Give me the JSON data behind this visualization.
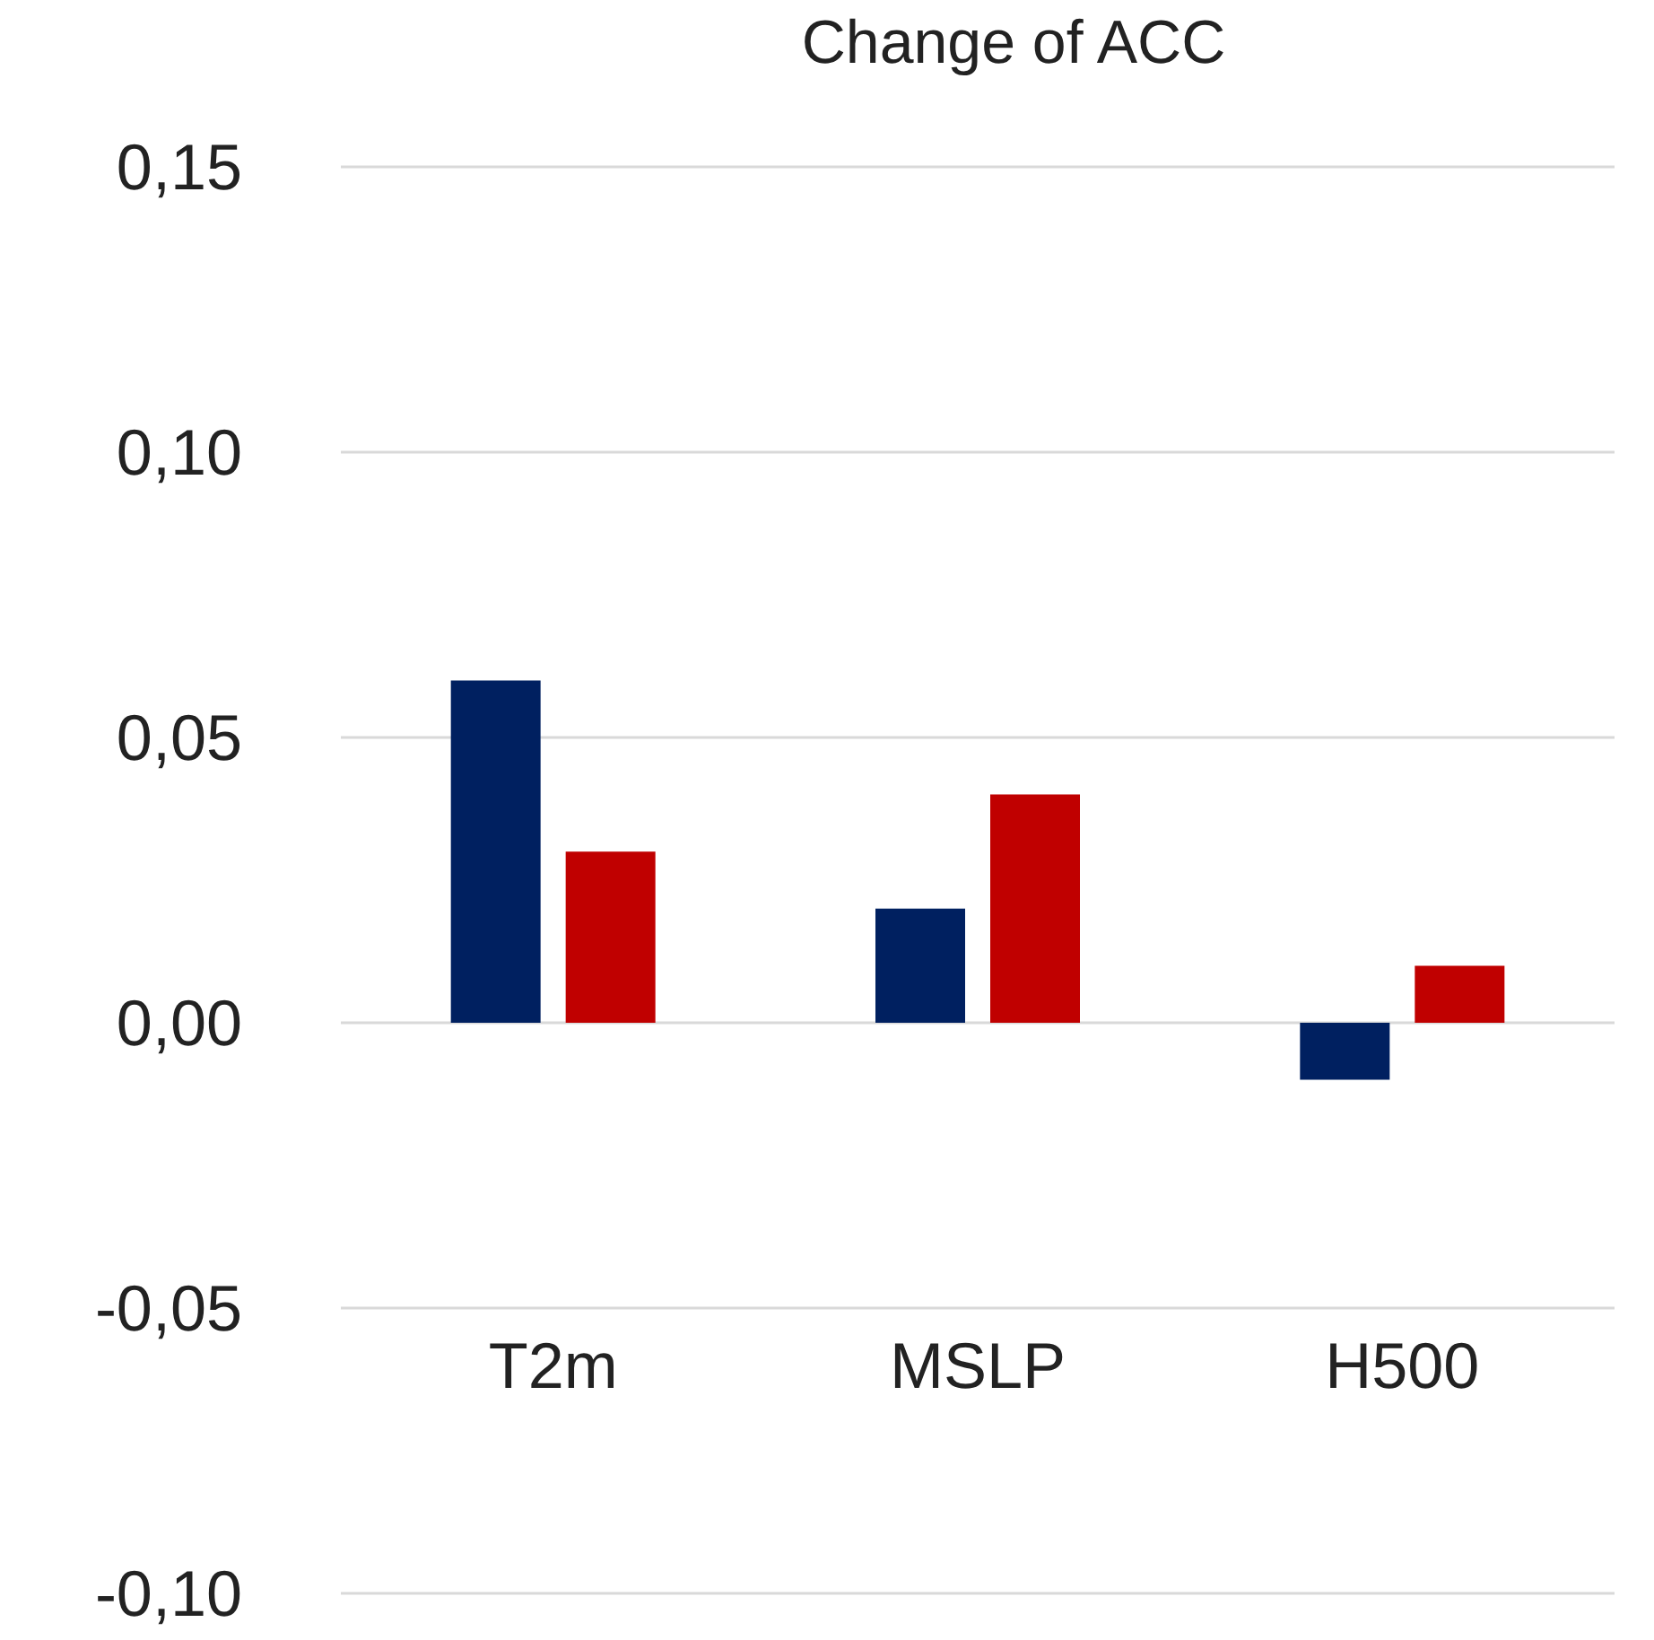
{
  "chart_data": {
    "type": "bar",
    "title": "Change of ACC",
    "categories": [
      "T2m",
      "MSLP",
      "H500"
    ],
    "series": [
      {
        "color": "#002060",
        "values": [
          0.06,
          0.02,
          -0.01
        ]
      },
      {
        "color": "#c00000",
        "values": [
          0.03,
          0.04,
          0.01
        ]
      }
    ],
    "ylim": [
      -0.1,
      0.15
    ],
    "yticks": [
      {
        "value": -0.1,
        "label": "-0,10"
      },
      {
        "value": -0.05,
        "label": "-0,05"
      },
      {
        "value": 0,
        "label": "0,00"
      },
      {
        "value": 0.05,
        "label": "0,05"
      },
      {
        "value": 0.1,
        "label": "0,10"
      },
      {
        "value": 0.15,
        "label": "0,15"
      }
    ],
    "grid": "y"
  }
}
